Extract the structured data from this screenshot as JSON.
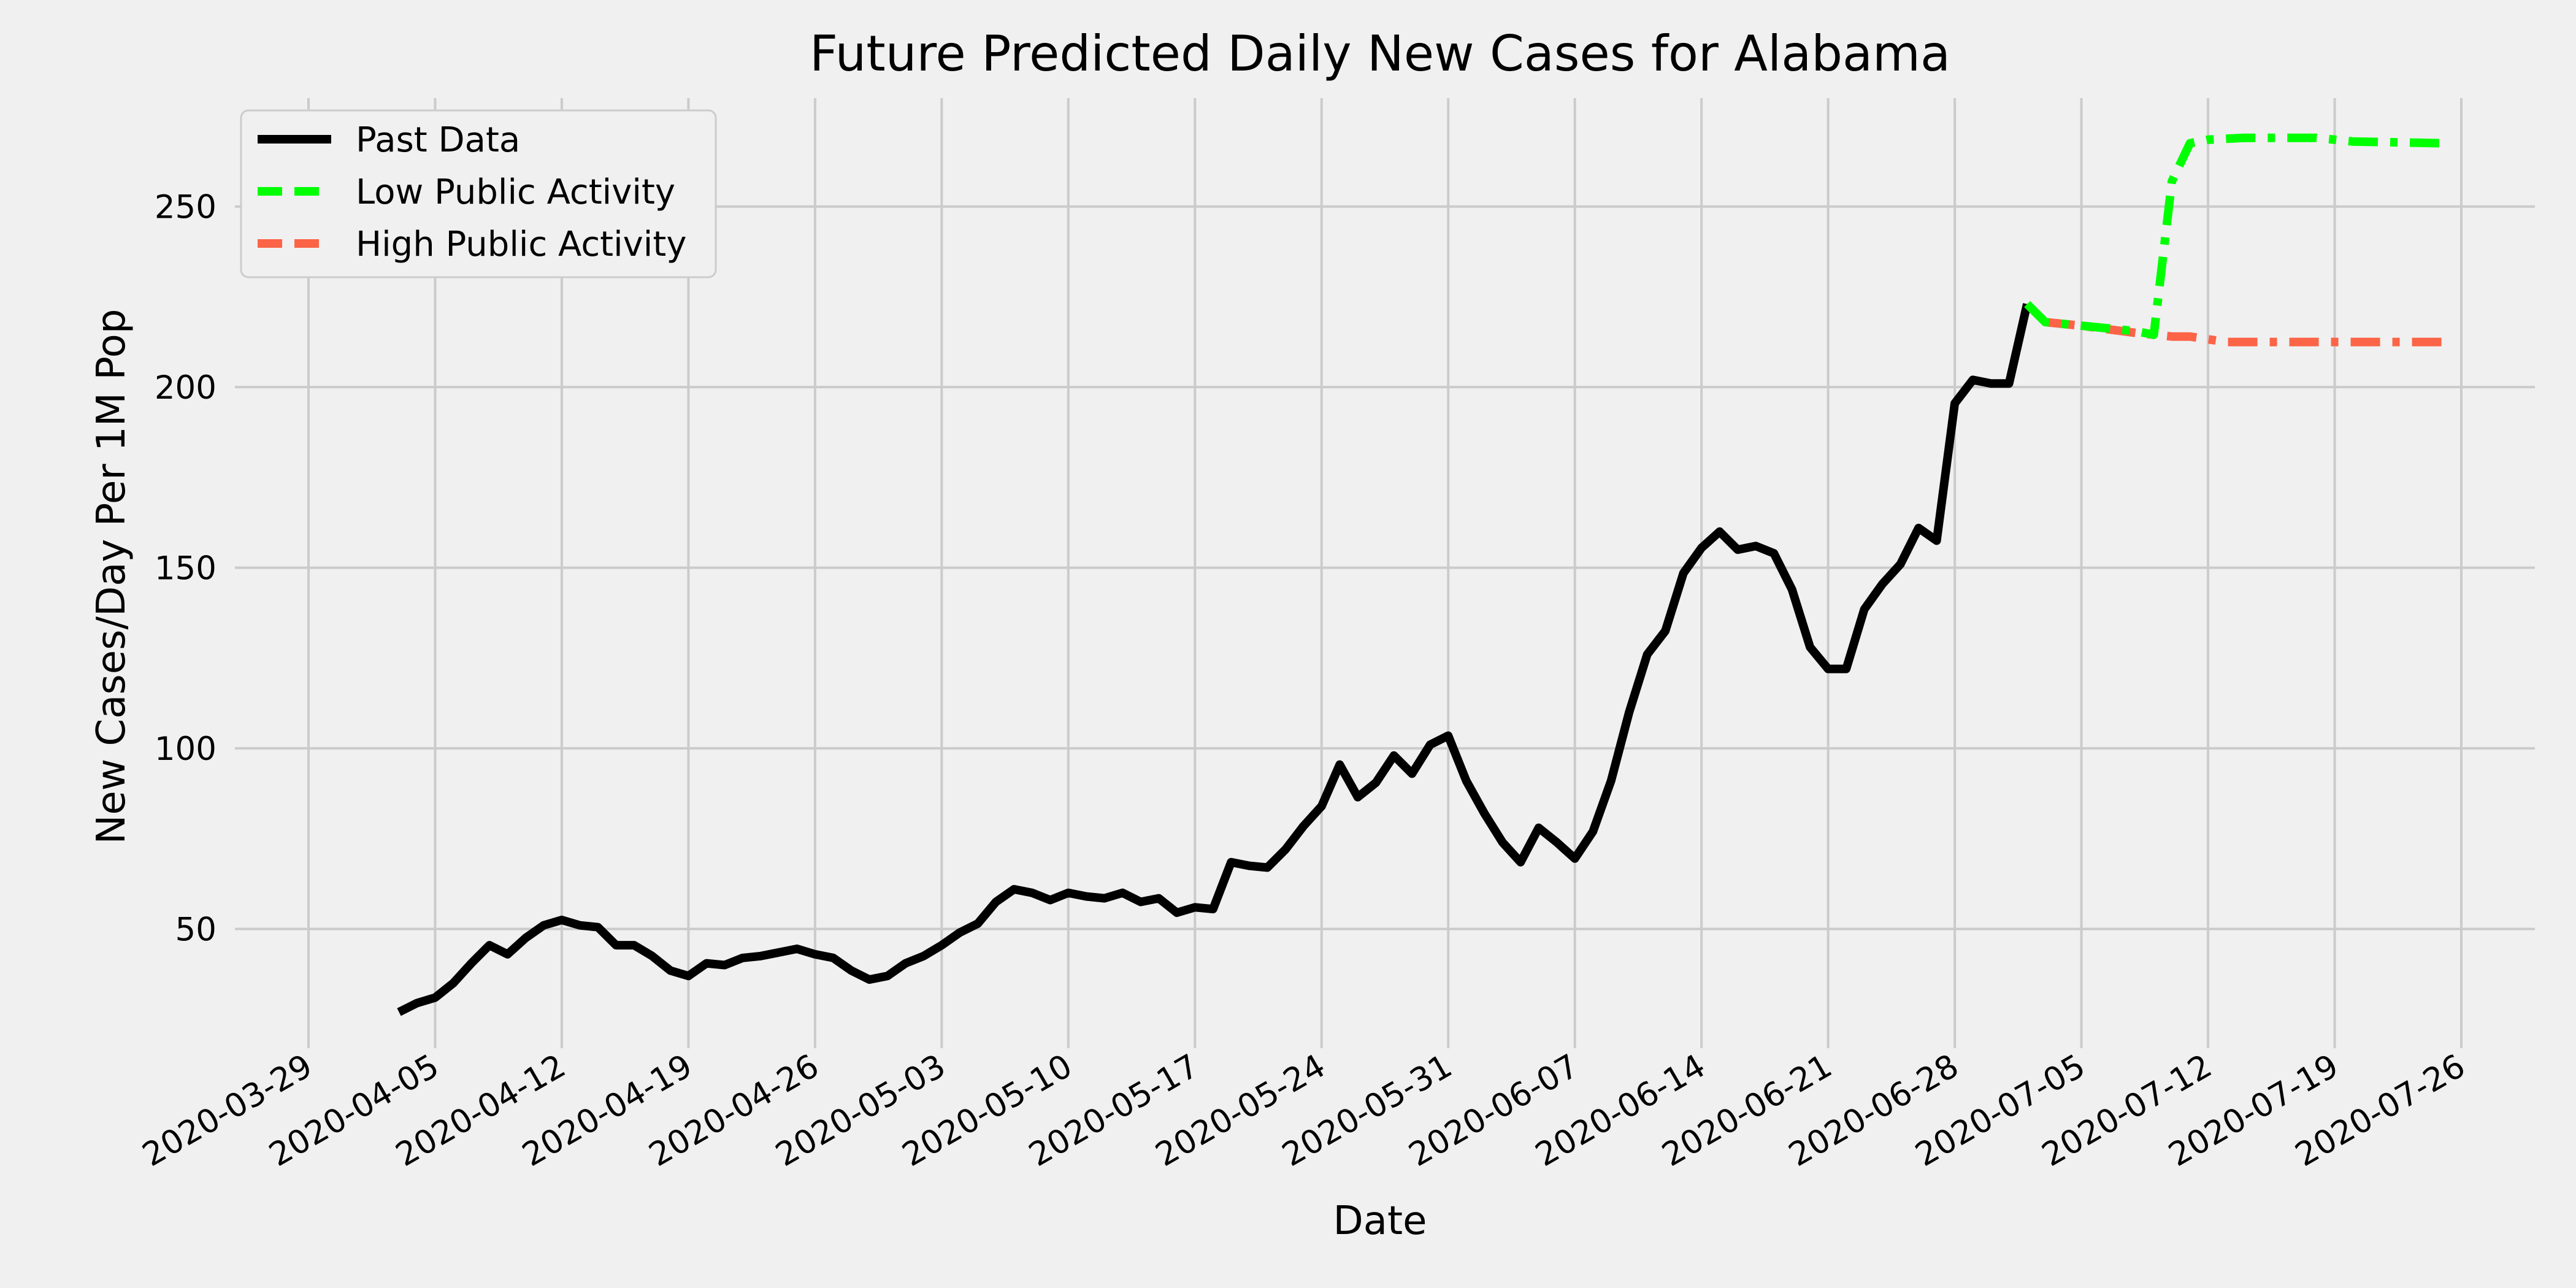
{
  "chart_data": {
    "type": "line",
    "title": "Future Predicted Daily New Cases for Alabama",
    "xlabel": "Date",
    "ylabel": "New Cases/Day Per 1M Pop",
    "x_axis": {
      "type": "date",
      "range": [
        "2020-03-29",
        "2020-07-26"
      ],
      "ticks": [
        "2020-03-29",
        "2020-04-05",
        "2020-04-12",
        "2020-04-19",
        "2020-04-26",
        "2020-05-03",
        "2020-05-10",
        "2020-05-17",
        "2020-05-24",
        "2020-05-31",
        "2020-06-07",
        "2020-06-14",
        "2020-06-21",
        "2020-06-28",
        "2020-07-05",
        "2020-07-12",
        "2020-07-19",
        "2020-07-26"
      ]
    },
    "y_axis": {
      "range": [
        17,
        280
      ],
      "ticks": [
        50,
        100,
        150,
        200,
        250
      ]
    },
    "grid": true,
    "legend": {
      "position": "top-left"
    },
    "series": [
      {
        "name": "Past Data",
        "color": "#000000",
        "style": "solid",
        "points": [
          [
            "2020-04-03",
            27
          ],
          [
            "2020-04-04",
            29.5
          ],
          [
            "2020-04-05",
            31
          ],
          [
            "2020-04-06",
            35
          ],
          [
            "2020-04-07",
            40.5
          ],
          [
            "2020-04-08",
            45.5
          ],
          [
            "2020-04-09",
            43
          ],
          [
            "2020-04-10",
            47.5
          ],
          [
            "2020-04-11",
            51
          ],
          [
            "2020-04-12",
            52.5
          ],
          [
            "2020-04-13",
            51
          ],
          [
            "2020-04-14",
            50.5
          ],
          [
            "2020-04-15",
            45.5
          ],
          [
            "2020-04-16",
            45.5
          ],
          [
            "2020-04-17",
            42.5
          ],
          [
            "2020-04-18",
            38.5
          ],
          [
            "2020-04-19",
            37
          ],
          [
            "2020-04-20",
            40.5
          ],
          [
            "2020-04-21",
            40
          ],
          [
            "2020-04-22",
            42
          ],
          [
            "2020-04-23",
            42.5
          ],
          [
            "2020-04-24",
            43.5
          ],
          [
            "2020-04-25",
            44.5
          ],
          [
            "2020-04-26",
            43
          ],
          [
            "2020-04-27",
            42
          ],
          [
            "2020-04-28",
            38.5
          ],
          [
            "2020-04-29",
            36
          ],
          [
            "2020-04-30",
            37
          ],
          [
            "2020-05-01",
            40.5
          ],
          [
            "2020-05-02",
            42.5
          ],
          [
            "2020-05-03",
            45.5
          ],
          [
            "2020-05-04",
            49
          ],
          [
            "2020-05-05",
            51.5
          ],
          [
            "2020-05-06",
            57.5
          ],
          [
            "2020-05-07",
            61
          ],
          [
            "2020-05-08",
            60
          ],
          [
            "2020-05-09",
            58
          ],
          [
            "2020-05-10",
            60
          ],
          [
            "2020-05-11",
            59
          ],
          [
            "2020-05-12",
            58.5
          ],
          [
            "2020-05-13",
            60
          ],
          [
            "2020-05-14",
            57.5
          ],
          [
            "2020-05-15",
            58.5
          ],
          [
            "2020-05-16",
            54.5
          ],
          [
            "2020-05-17",
            56
          ],
          [
            "2020-05-18",
            55.5
          ],
          [
            "2020-05-19",
            68.5
          ],
          [
            "2020-05-20",
            67.5
          ],
          [
            "2020-05-21",
            67
          ],
          [
            "2020-05-22",
            72
          ],
          [
            "2020-05-23",
            78.5
          ],
          [
            "2020-05-24",
            84
          ],
          [
            "2020-05-25",
            95.5
          ],
          [
            "2020-05-26",
            86.5
          ],
          [
            "2020-05-27",
            90.5
          ],
          [
            "2020-05-28",
            98
          ],
          [
            "2020-05-29",
            93
          ],
          [
            "2020-05-30",
            101
          ],
          [
            "2020-05-31",
            103.5
          ],
          [
            "2020-06-01",
            91
          ],
          [
            "2020-06-02",
            82
          ],
          [
            "2020-06-03",
            74
          ],
          [
            "2020-06-04",
            68.5
          ],
          [
            "2020-06-05",
            78
          ],
          [
            "2020-06-06",
            74
          ],
          [
            "2020-06-07",
            69.5
          ],
          [
            "2020-06-08",
            77
          ],
          [
            "2020-06-09",
            91
          ],
          [
            "2020-06-10",
            110
          ],
          [
            "2020-06-11",
            126
          ],
          [
            "2020-06-12",
            132.5
          ],
          [
            "2020-06-13",
            148.5
          ],
          [
            "2020-06-14",
            155.5
          ],
          [
            "2020-06-15",
            160
          ],
          [
            "2020-06-16",
            155
          ],
          [
            "2020-06-17",
            156
          ],
          [
            "2020-06-18",
            154
          ],
          [
            "2020-06-19",
            144
          ],
          [
            "2020-06-20",
            128
          ],
          [
            "2020-06-21",
            122
          ],
          [
            "2020-06-22",
            122
          ],
          [
            "2020-06-23",
            138.5
          ],
          [
            "2020-06-24",
            145.5
          ],
          [
            "2020-06-25",
            151
          ],
          [
            "2020-06-26",
            161
          ],
          [
            "2020-06-27",
            157.5
          ],
          [
            "2020-06-28",
            195.5
          ],
          [
            "2020-06-29",
            202
          ],
          [
            "2020-06-30",
            201
          ],
          [
            "2020-07-01",
            201
          ],
          [
            "2020-07-02",
            223
          ]
        ]
      },
      {
        "name": "Low Public Activity",
        "color": "#00ff00",
        "style": "dashdot",
        "points": [
          [
            "2020-07-02",
            223
          ],
          [
            "2020-07-03",
            218
          ],
          [
            "2020-07-06",
            216.5
          ],
          [
            "2020-07-08",
            215.5
          ],
          [
            "2020-07-09",
            214.5
          ],
          [
            "2020-07-10",
            257
          ],
          [
            "2020-07-11",
            267.5
          ],
          [
            "2020-07-12",
            268.5
          ],
          [
            "2020-07-14",
            269
          ],
          [
            "2020-07-16",
            269
          ],
          [
            "2020-07-18",
            269
          ],
          [
            "2020-07-20",
            268
          ],
          [
            "2020-07-25",
            267.5
          ]
        ]
      },
      {
        "name": "High Public Activity",
        "color": "#fc6447",
        "style": "dashdot",
        "points": [
          [
            "2020-07-03",
            218
          ],
          [
            "2020-07-05",
            217
          ],
          [
            "2020-07-08",
            215
          ],
          [
            "2020-07-10",
            214
          ],
          [
            "2020-07-11",
            214
          ],
          [
            "2020-07-13",
            212.5
          ],
          [
            "2020-07-16",
            212.5
          ],
          [
            "2020-07-20",
            212.5
          ],
          [
            "2020-07-25",
            212.5
          ]
        ]
      }
    ]
  }
}
